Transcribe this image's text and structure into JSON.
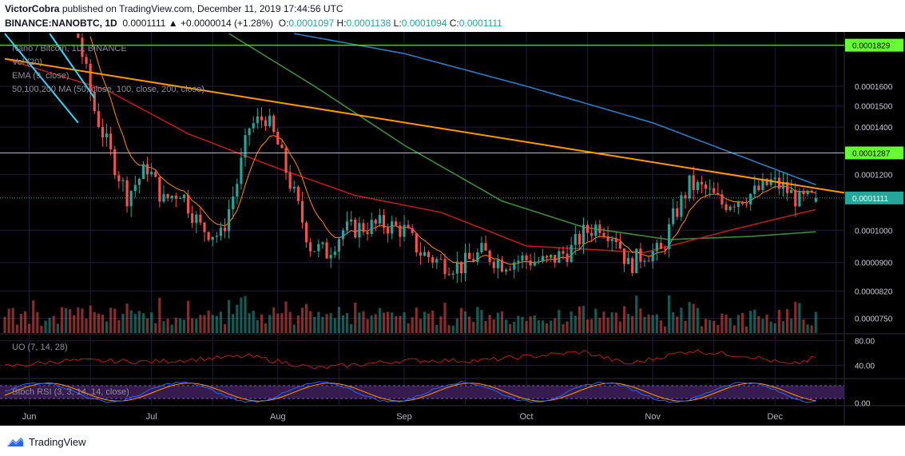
{
  "header": {
    "author": "VictorCobra",
    "published_text": "published on TradingView.com, December 11, 2019 17:44:56 UTC",
    "symbol": "BINANCE:NANOBTC, 1D",
    "last": "0.0001111",
    "change": "▲ +0.0000014 (+1.28%)",
    "o_label": "O:",
    "o_value": "0.0001097",
    "h_label": "H:",
    "h_value": "0.0001138",
    "l_label": "L:",
    "l_value": "0.0001094",
    "c_label": "C:",
    "c_value": "0.0001111"
  },
  "legend": {
    "title": "Nano / Bitcoin, 1D, BINANCE",
    "vol": "Vol (20)",
    "ema": "EMA (9, close)",
    "ma": "50,100,200 MA (50, close, 100, close, 200, close)",
    "uo": "UO (7, 14, 28)",
    "stoch": "Stoch RSI (3, 3, 14, 14, close)"
  },
  "footer": {
    "brand": "TradingView"
  },
  "colors": {
    "background": "#000000",
    "grid": "#241a3a",
    "up": "#26a69a",
    "down": "#ef5350",
    "ema": "#ff8c00",
    "ma50": "#b71c1c",
    "ma100": "#3d8b3d",
    "ma200": "#2e7bc4",
    "trendline": "#ff9800",
    "level": "#66ff33",
    "uo": "#b71c1c",
    "stoch_k": "#2962ff",
    "stoch_d": "#ff9800",
    "stoch_band": "#3b1e57"
  },
  "chart_data": {
    "type": "candlestick",
    "x_months": [
      "Jun",
      "Jul",
      "Aug",
      "Sep",
      "Oct",
      "Nov",
      "Dec"
    ],
    "price_axis_ticks": [
      "0.0001600",
      "0.0001500",
      "0.0001400",
      "0.0001200",
      "0.0001000",
      "0.0000900",
      "0.0000820",
      "0.0000750"
    ],
    "price_scale": "log",
    "price_range": [
      7.15e-05,
      0.00019
    ],
    "price_levels": [
      {
        "value": 0.0001829,
        "label": "0.0001829"
      },
      {
        "value": 0.0001287,
        "label": "0.0001287"
      }
    ],
    "last_price": {
      "value": 0.0001111,
      "label": "0.0001111"
    },
    "trendline": [
      {
        "date": "2019-05-26",
        "price": 0.000175
      },
      {
        "date": "2019-12-18",
        "price": 0.000113
      }
    ],
    "cyan_lines": [
      [
        {
          "date": "2019-05-26",
          "price": 0.00019
        },
        {
          "date": "2019-06-13",
          "price": 0.000142
        }
      ],
      [
        {
          "date": "2019-06-06",
          "price": 0.00019
        },
        {
          "date": "2019-06-17",
          "price": 0.000154
        }
      ]
    ],
    "close_anchors": [
      [
        "2019-05-26",
        0.0003
      ],
      [
        "2019-06-03",
        0.00023
      ],
      [
        "2019-06-09",
        0.00021
      ],
      [
        "2019-06-13",
        0.000188
      ],
      [
        "2019-06-17",
        0.000148
      ],
      [
        "2019-06-21",
        0.000128
      ],
      [
        "2019-06-25",
        0.000112
      ],
      [
        "2019-06-30",
        0.000123
      ],
      [
        "2019-07-04",
        0.00011
      ],
      [
        "2019-07-08",
        0.000114
      ],
      [
        "2019-07-13",
        0.000101
      ],
      [
        "2019-07-18",
        9.8e-05
      ],
      [
        "2019-07-22",
        0.000117
      ],
      [
        "2019-07-25",
        0.00014
      ],
      [
        "2019-07-29",
        0.000145
      ],
      [
        "2019-08-01",
        0.000132
      ],
      [
        "2019-08-05",
        0.000112
      ],
      [
        "2019-08-09",
        9.5e-05
      ],
      [
        "2019-08-13",
        9.3e-05
      ],
      [
        "2019-08-17",
        0.0001
      ],
      [
        "2019-08-22",
        0.000101
      ],
      [
        "2019-08-27",
        0.000102
      ],
      [
        "2019-09-01",
        0.0001
      ],
      [
        "2019-09-05",
        9.3e-05
      ],
      [
        "2019-09-10",
        9e-05
      ],
      [
        "2019-09-15",
        8.9e-05
      ],
      [
        "2019-09-20",
        9.3e-05
      ],
      [
        "2019-09-25",
        9e-05
      ],
      [
        "2019-09-30",
        9.1e-05
      ],
      [
        "2019-10-06",
        9e-05
      ],
      [
        "2019-10-12",
        9.4e-05
      ],
      [
        "2019-10-15",
        9.9e-05
      ],
      [
        "2019-10-19",
        0.000102
      ],
      [
        "2019-10-23",
        9.8e-05
      ],
      [
        "2019-10-26",
        8.9e-05
      ],
      [
        "2019-10-30",
        9.3e-05
      ],
      [
        "2019-11-03",
        9.3e-05
      ],
      [
        "2019-11-06",
        0.000104
      ],
      [
        "2019-11-10",
        0.000116
      ],
      [
        "2019-11-14",
        0.000114
      ],
      [
        "2019-11-18",
        0.000109
      ],
      [
        "2019-11-22",
        0.000111
      ],
      [
        "2019-11-26",
        0.000113
      ],
      [
        "2019-11-30",
        0.000117
      ],
      [
        "2019-12-03",
        0.000115
      ],
      [
        "2019-12-07",
        0.00011
      ],
      [
        "2019-12-11",
        0.0001111
      ]
    ],
    "ma50_anchors": [
      [
        "2019-05-26",
        0.000175
      ],
      [
        "2019-06-20",
        0.000158
      ],
      [
        "2019-07-10",
        0.000137
      ],
      [
        "2019-07-31",
        0.000123
      ],
      [
        "2019-08-20",
        0.000112
      ],
      [
        "2019-09-10",
        0.000106
      ],
      [
        "2019-10-01",
        9.5e-05
      ],
      [
        "2019-10-30",
        9.3e-05
      ],
      [
        "2019-11-20",
        0.0001
      ],
      [
        "2019-12-11",
        0.000107
      ]
    ],
    "ma100_anchors": [
      [
        "2019-07-20",
        0.00019
      ],
      [
        "2019-08-10",
        0.00016
      ],
      [
        "2019-09-01",
        0.000132
      ],
      [
        "2019-09-25",
        0.00011
      ],
      [
        "2019-10-15",
        0.000101
      ],
      [
        "2019-11-05",
        9.7e-05
      ],
      [
        "2019-11-25",
        9.8e-05
      ],
      [
        "2019-12-11",
        9.95e-05
      ]
    ],
    "ma200_anchors": [
      [
        "2019-08-05",
        0.00019
      ],
      [
        "2019-09-01",
        0.000178
      ],
      [
        "2019-10-01",
        0.00016
      ],
      [
        "2019-11-01",
        0.000142
      ],
      [
        "2019-11-20",
        0.000129
      ],
      [
        "2019-12-11",
        0.000116
      ]
    ],
    "uo_axis_ticks": [
      "80.00",
      "40.00"
    ],
    "uo_range": [
      20,
      90
    ],
    "uo_anchors": [
      [
        "2019-05-26",
        38
      ],
      [
        "2019-06-10",
        48
      ],
      [
        "2019-07-01",
        46
      ],
      [
        "2019-07-25",
        55
      ],
      [
        "2019-08-05",
        42
      ],
      [
        "2019-08-10",
        35
      ],
      [
        "2019-09-01",
        48
      ],
      [
        "2019-09-20",
        48
      ],
      [
        "2019-10-15",
        62
      ],
      [
        "2019-10-26",
        42
      ],
      [
        "2019-11-10",
        64
      ],
      [
        "2019-11-25",
        55
      ],
      [
        "2019-12-05",
        40
      ],
      [
        "2019-12-11",
        53
      ]
    ],
    "stoch_axis_ticks": [
      "0.00"
    ],
    "stoch_range": [
      -10,
      110
    ],
    "stoch_band": [
      20,
      80
    ]
  }
}
